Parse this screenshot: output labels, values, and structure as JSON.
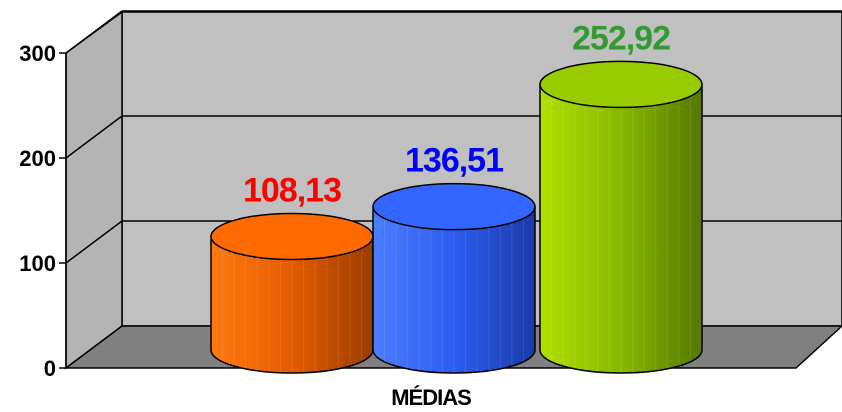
{
  "chart_data": {
    "type": "bar",
    "style": "3d-cylinder",
    "title": "",
    "xlabel": "",
    "ylabel": "",
    "categories": [
      "MÉDIAS"
    ],
    "ylim": [
      0,
      300
    ],
    "yticks": [
      "0",
      "100",
      "200",
      "300"
    ],
    "grid": true,
    "legend": "none",
    "series": [
      {
        "value": 108.13,
        "label": "108,13",
        "color": "#ff6a00",
        "label_color": "#ff0000"
      },
      {
        "value": 136.51,
        "label": "136,51",
        "color": "#3366ff",
        "label_color": "#0000ff"
      },
      {
        "value": 252.92,
        "label": "252,92",
        "color": "#99cc00",
        "label_color": "#339933"
      }
    ]
  }
}
